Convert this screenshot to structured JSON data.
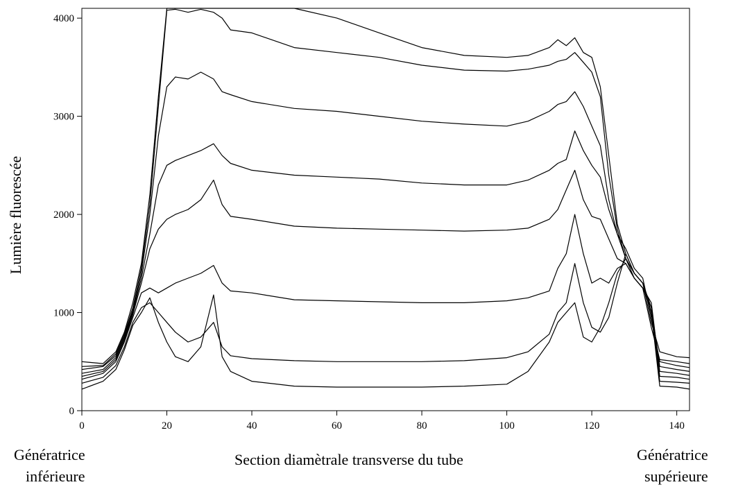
{
  "chart_data": {
    "type": "line",
    "title": "",
    "xlabel": "Section diamètrale transverse du tube",
    "ylabel": "Lumière fluorescée",
    "xlim": [
      0,
      143
    ],
    "ylim": [
      0,
      4100
    ],
    "x_ticks": [
      0,
      20,
      40,
      60,
      80,
      100,
      120,
      140
    ],
    "y_ticks": [
      0,
      1000,
      2000,
      3000,
      4000
    ],
    "legend": "none",
    "grid": false,
    "series": [
      {
        "x": [
          0,
          5,
          8,
          10,
          12,
          14,
          16,
          18,
          20,
          22,
          25,
          28,
          31,
          33,
          35,
          40,
          50,
          60,
          70,
          80,
          90,
          100,
          105,
          110,
          112,
          114,
          116,
          118,
          120,
          122,
          124,
          126,
          128,
          130,
          132,
          134,
          136,
          140,
          143
        ],
        "y": [
          500,
          480,
          600,
          800,
          1100,
          1500,
          2200,
          3200,
          4100,
          4100,
          4100,
          4100,
          4100,
          4100,
          4100,
          4100,
          4100,
          4000,
          3850,
          3700,
          3620,
          3600,
          3620,
          3700,
          3780,
          3720,
          3800,
          3650,
          3600,
          3300,
          2600,
          1900,
          1600,
          1400,
          1300,
          900,
          600,
          550,
          540
        ]
      },
      {
        "x": [
          0,
          5,
          8,
          10,
          12,
          14,
          16,
          18,
          20,
          22,
          25,
          28,
          31,
          33,
          35,
          40,
          50,
          60,
          70,
          80,
          90,
          100,
          105,
          110,
          112,
          114,
          116,
          118,
          120,
          122,
          124,
          126,
          128,
          130,
          132,
          134,
          136,
          140,
          143
        ],
        "y": [
          450,
          460,
          580,
          780,
          1050,
          1450,
          2100,
          3100,
          4080,
          4090,
          4060,
          4090,
          4060,
          4000,
          3880,
          3850,
          3700,
          3650,
          3600,
          3520,
          3470,
          3460,
          3480,
          3520,
          3560,
          3580,
          3650,
          3550,
          3450,
          3200,
          2400,
          1850,
          1550,
          1350,
          1250,
          850,
          520,
          500,
          480
        ]
      },
      {
        "x": [
          0,
          5,
          8,
          10,
          12,
          14,
          16,
          18,
          20,
          22,
          25,
          28,
          31,
          33,
          35,
          40,
          50,
          60,
          70,
          80,
          90,
          100,
          105,
          110,
          112,
          114,
          116,
          118,
          120,
          122,
          124,
          126,
          128,
          130,
          132,
          134,
          136,
          140,
          143
        ],
        "y": [
          420,
          450,
          560,
          760,
          1020,
          1400,
          2000,
          2800,
          3300,
          3400,
          3380,
          3450,
          3380,
          3250,
          3220,
          3150,
          3080,
          3050,
          3000,
          2950,
          2920,
          2900,
          2950,
          3050,
          3120,
          3150,
          3250,
          3100,
          2900,
          2700,
          2150,
          1800,
          1650,
          1450,
          1350,
          950,
          500,
          460,
          440
        ]
      },
      {
        "x": [
          0,
          5,
          8,
          10,
          12,
          14,
          16,
          18,
          20,
          22,
          25,
          28,
          31,
          33,
          35,
          40,
          50,
          60,
          70,
          80,
          90,
          100,
          105,
          110,
          112,
          114,
          116,
          118,
          120,
          122,
          124,
          126,
          128,
          130,
          132,
          134,
          136,
          140,
          143
        ],
        "y": [
          380,
          420,
          540,
          740,
          1000,
          1350,
          1800,
          2300,
          2500,
          2550,
          2600,
          2650,
          2720,
          2600,
          2520,
          2450,
          2400,
          2380,
          2360,
          2320,
          2300,
          2300,
          2350,
          2450,
          2520,
          2560,
          2850,
          2650,
          2500,
          2380,
          2050,
          1800,
          1550,
          1400,
          1300,
          1050,
          450,
          420,
          400
        ]
      },
      {
        "x": [
          0,
          5,
          8,
          10,
          12,
          14,
          16,
          18,
          20,
          22,
          25,
          28,
          31,
          33,
          35,
          40,
          50,
          60,
          70,
          80,
          90,
          100,
          105,
          110,
          112,
          114,
          116,
          118,
          120,
          122,
          124,
          126,
          128,
          130,
          132,
          134,
          136,
          140,
          143
        ],
        "y": [
          350,
          400,
          520,
          720,
          980,
          1300,
          1650,
          1850,
          1950,
          2000,
          2050,
          2150,
          2350,
          2100,
          1980,
          1950,
          1880,
          1860,
          1850,
          1840,
          1830,
          1840,
          1860,
          1950,
          2050,
          2250,
          2450,
          2150,
          1980,
          1950,
          1750,
          1550,
          1500,
          1350,
          1250,
          1100,
          400,
          380,
          360
        ]
      },
      {
        "x": [
          0,
          5,
          8,
          10,
          12,
          14,
          16,
          18,
          20,
          22,
          25,
          28,
          31,
          33,
          35,
          40,
          50,
          60,
          70,
          80,
          90,
          100,
          105,
          110,
          112,
          114,
          116,
          118,
          120,
          122,
          124,
          126,
          128,
          130,
          132,
          134,
          136,
          140,
          143
        ],
        "y": [
          320,
          380,
          500,
          700,
          950,
          1200,
          1250,
          1200,
          1250,
          1300,
          1350,
          1400,
          1480,
          1300,
          1220,
          1200,
          1130,
          1120,
          1110,
          1100,
          1100,
          1120,
          1150,
          1220,
          1450,
          1600,
          2000,
          1600,
          1300,
          1350,
          1300,
          1450,
          1500,
          1350,
          1250,
          1050,
          350,
          340,
          320
        ]
      },
      {
        "x": [
          0,
          5,
          8,
          10,
          12,
          14,
          16,
          18,
          20,
          22,
          25,
          28,
          31,
          33,
          35,
          40,
          50,
          60,
          70,
          80,
          90,
          100,
          105,
          110,
          112,
          114,
          116,
          118,
          120,
          122,
          124,
          126,
          128,
          130,
          132,
          134,
          136,
          140,
          143
        ],
        "y": [
          280,
          340,
          460,
          650,
          900,
          1050,
          1100,
          1000,
          900,
          800,
          700,
          750,
          900,
          650,
          560,
          530,
          510,
          500,
          500,
          500,
          510,
          540,
          600,
          780,
          1000,
          1100,
          1500,
          1100,
          850,
          800,
          950,
          1300,
          1600,
          1400,
          1300,
          1000,
          300,
          290,
          280
        ]
      },
      {
        "x": [
          0,
          5,
          8,
          10,
          12,
          14,
          16,
          18,
          20,
          22,
          25,
          28,
          31,
          33,
          35,
          40,
          50,
          60,
          70,
          80,
          90,
          100,
          105,
          110,
          112,
          114,
          116,
          118,
          120,
          122,
          124,
          126,
          128,
          130,
          132,
          134,
          136,
          140,
          143
        ],
        "y": [
          220,
          300,
          420,
          620,
          870,
          1000,
          1150,
          900,
          700,
          550,
          500,
          650,
          1180,
          550,
          400,
          300,
          250,
          240,
          240,
          240,
          250,
          270,
          400,
          700,
          900,
          1000,
          1100,
          750,
          700,
          850,
          1100,
          1400,
          1550,
          1400,
          1300,
          1000,
          250,
          240,
          220
        ]
      }
    ]
  },
  "footer": {
    "left_line1": "Génératrice",
    "left_line2": "inférieure",
    "center": "Section diamètrale transverse du tube",
    "right_line1": "Génératrice",
    "right_line2": "supérieure"
  }
}
